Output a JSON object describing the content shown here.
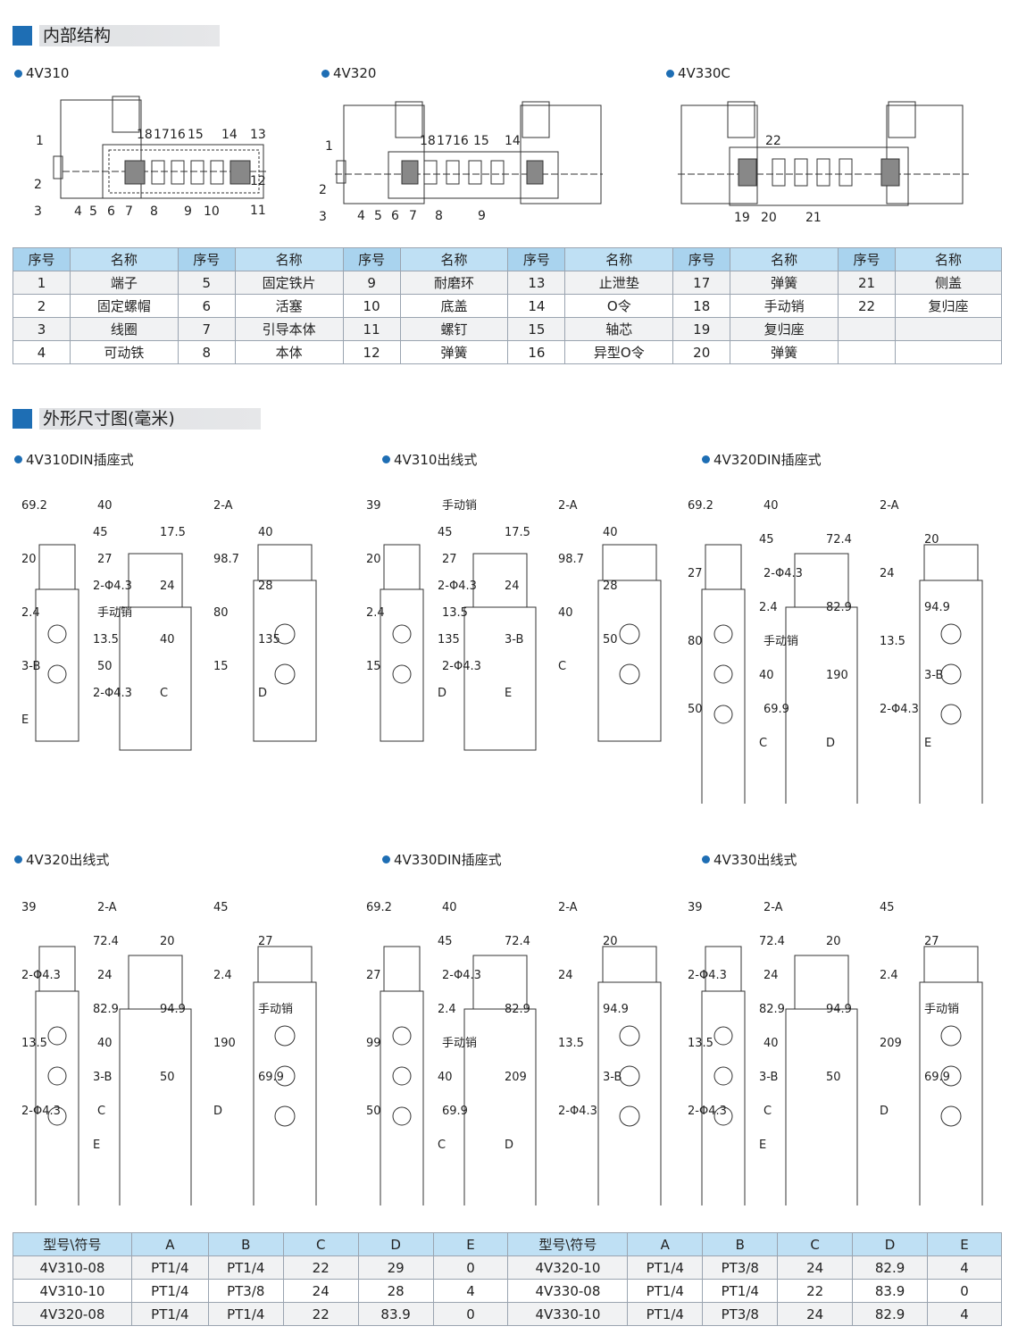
{
  "section1": {
    "title": "内部结构"
  },
  "structure_models": [
    {
      "name": "4V310",
      "labels": [
        "1",
        "2",
        "3",
        "18",
        "17",
        "16",
        "15",
        "14",
        "13",
        "12",
        "11",
        "4",
        "5",
        "6",
        "7",
        "8",
        "9",
        "10"
      ]
    },
    {
      "name": "4V320",
      "labels": [
        "1",
        "2",
        "3",
        "18",
        "17",
        "16",
        "15",
        "14",
        "4",
        "5",
        "6",
        "7",
        "8",
        "9"
      ]
    },
    {
      "name": "4V330C",
      "labels": [
        "22",
        "19",
        "20",
        "21"
      ]
    }
  ],
  "parts_table": {
    "headers": [
      "序号",
      "名称",
      "序号",
      "名称",
      "序号",
      "名称",
      "序号",
      "名称",
      "序号",
      "名称",
      "序号",
      "名称"
    ],
    "rows": [
      [
        "1",
        "端子",
        "5",
        "固定铁片",
        "9",
        "耐磨环",
        "13",
        "止泄垫",
        "17",
        "弹簧",
        "21",
        "侧盖"
      ],
      [
        "2",
        "固定螺帽",
        "6",
        "活塞",
        "10",
        "底盖",
        "14",
        "O令",
        "18",
        "手动销",
        "22",
        "复归座"
      ],
      [
        "3",
        "线圈",
        "7",
        "引导本体",
        "11",
        "螺钉",
        "15",
        "轴芯",
        "19",
        "复归座",
        "",
        ""
      ],
      [
        "4",
        "可动铁",
        "8",
        "本体",
        "12",
        "弹簧",
        "16",
        "异型O令",
        "20",
        "弹簧",
        "",
        ""
      ]
    ]
  },
  "section2": {
    "title": "外形尺寸图(毫米)"
  },
  "dimension_drawings": [
    {
      "name": "4V310DIN插座式",
      "dims": [
        "69.2",
        "40",
        "2-A",
        "45",
        "17.5",
        "40",
        "20",
        "27",
        "98.7",
        "2-Φ4.3",
        "24",
        "28",
        "2.4",
        "手动销",
        "80",
        "13.5",
        "40",
        "135",
        "3-B",
        "50",
        "15",
        "2-Φ4.3",
        "C",
        "D",
        "E"
      ]
    },
    {
      "name": "4V310出线式",
      "dims": [
        "39",
        "手动销",
        "2-A",
        "45",
        "17.5",
        "40",
        "20",
        "27",
        "98.7",
        "2-Φ4.3",
        "24",
        "28",
        "2.4",
        "13.5",
        "40",
        "135",
        "3-B",
        "50",
        "15",
        "2-Φ4.3",
        "C",
        "D",
        "E"
      ]
    },
    {
      "name": "4V320DIN插座式",
      "dims": [
        "69.2",
        "40",
        "2-A",
        "45",
        "72.4",
        "20",
        "27",
        "2-Φ4.3",
        "24",
        "2.4",
        "82.9",
        "94.9",
        "80",
        "手动销",
        "13.5",
        "40",
        "190",
        "3-B",
        "50",
        "69.9",
        "2-Φ4.3",
        "C",
        "D",
        "E"
      ]
    },
    {
      "name": "4V320出线式",
      "dims": [
        "39",
        "2-A",
        "45",
        "72.4",
        "20",
        "27",
        "2-Φ4.3",
        "24",
        "2.4",
        "82.9",
        "94.9",
        "手动销",
        "13.5",
        "40",
        "190",
        "3-B",
        "50",
        "69.9",
        "2-Φ4.3",
        "C",
        "D",
        "E"
      ]
    },
    {
      "name": "4V330DIN插座式",
      "dims": [
        "69.2",
        "40",
        "2-A",
        "45",
        "72.4",
        "20",
        "27",
        "2-Φ4.3",
        "24",
        "2.4",
        "82.9",
        "94.9",
        "99",
        "手动销",
        "13.5",
        "40",
        "209",
        "3-B",
        "50",
        "69.9",
        "2-Φ4.3",
        "C",
        "D"
      ]
    },
    {
      "name": "4V330出线式",
      "dims": [
        "39",
        "2-A",
        "45",
        "72.4",
        "20",
        "27",
        "2-Φ4.3",
        "24",
        "2.4",
        "82.9",
        "94.9",
        "手动销",
        "13.5",
        "40",
        "209",
        "3-B",
        "50",
        "69.9",
        "2-Φ4.3",
        "C",
        "D",
        "E"
      ]
    }
  ],
  "spec_table": {
    "headers": [
      "型号\\符号",
      "A",
      "B",
      "C",
      "D",
      "E",
      "型号\\符号",
      "A",
      "B",
      "C",
      "D",
      "E"
    ],
    "rows": [
      [
        "4V310-08",
        "PT1/4",
        "PT1/4",
        "22",
        "29",
        "0",
        "4V320-10",
        "PT1/4",
        "PT3/8",
        "24",
        "82.9",
        "4"
      ],
      [
        "4V310-10",
        "PT1/4",
        "PT3/8",
        "24",
        "28",
        "4",
        "4V330-08",
        "PT1/4",
        "PT1/4",
        "22",
        "83.9",
        "0"
      ],
      [
        "4V320-08",
        "PT1/4",
        "PT1/4",
        "22",
        "83.9",
        "0",
        "4V330-10",
        "PT1/4",
        "PT3/8",
        "24",
        "82.9",
        "4"
      ]
    ]
  },
  "colors": {
    "accent": "#1e6eb4",
    "header_bg": "#bfe0f4",
    "line": "#333333"
  }
}
